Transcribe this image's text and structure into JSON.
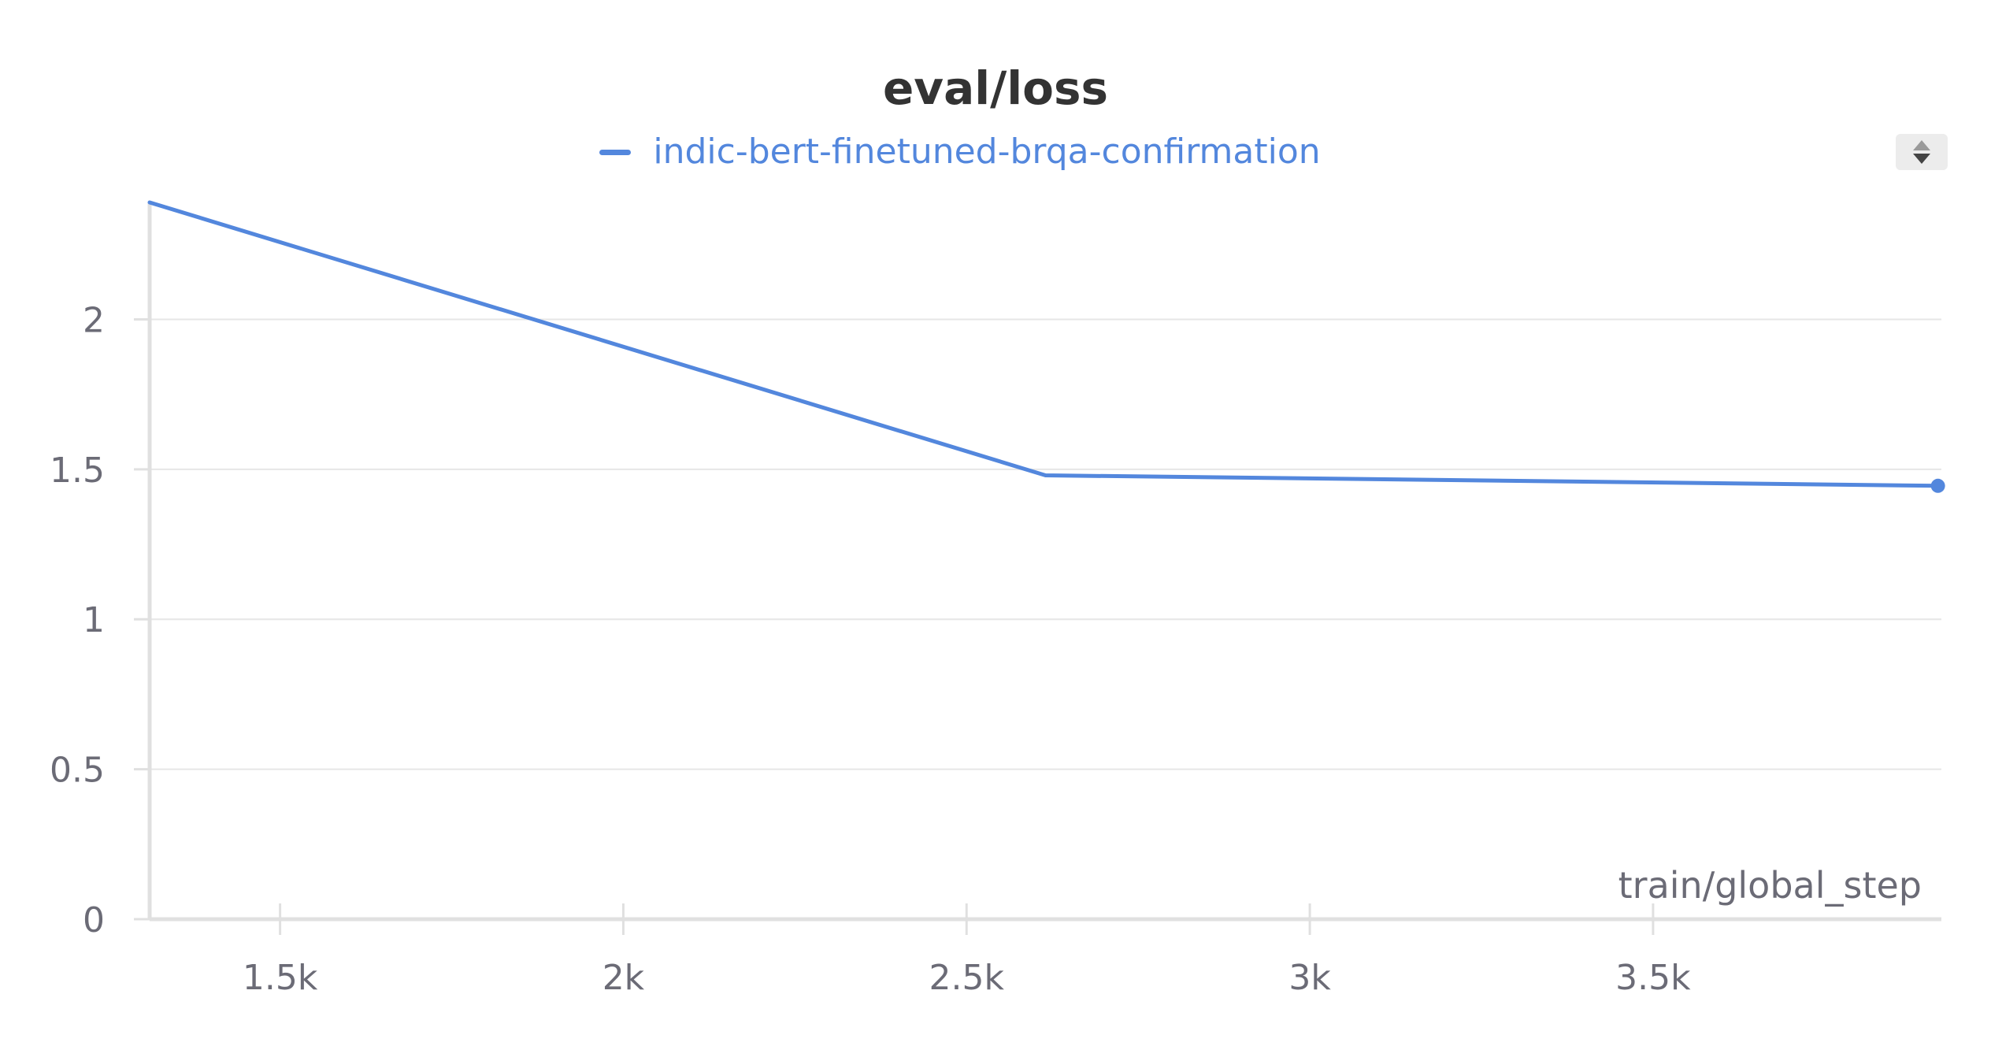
{
  "chart_data": {
    "type": "line",
    "title": "eval/loss",
    "xlabel": "train/global_step",
    "ylabel": "",
    "xlim": [
      1310,
      3920
    ],
    "ylim": [
      0,
      2.39
    ],
    "x_ticks": [
      1500,
      2000,
      2500,
      3000,
      3500
    ],
    "x_tick_labels": [
      "1.5k",
      "2k",
      "2.5k",
      "3k",
      "3.5k"
    ],
    "y_ticks": [
      0,
      0.5,
      1,
      1.5,
      2
    ],
    "y_tick_labels": [
      "0",
      "0.5",
      "1",
      "1.5",
      "2"
    ],
    "grid": true,
    "legend_position": "top-center",
    "series": [
      {
        "name": "indic-bert-finetuned-brqa-confirmation",
        "color": "#5387dd",
        "x": [
          1310,
          2615,
          3915
        ],
        "y": [
          2.39,
          1.48,
          1.445
        ]
      }
    ]
  },
  "controls": {
    "sort_icon": "sort-arrows-icon"
  }
}
